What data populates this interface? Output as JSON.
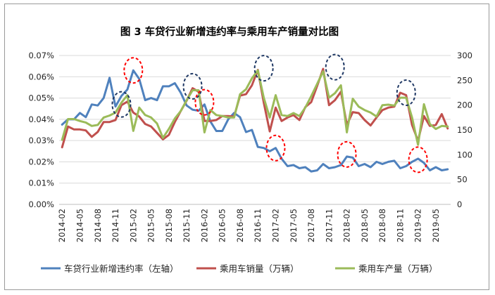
{
  "chart_data": {
    "type": "line",
    "title": "图 3  车贷行业新增违约率与乘用车产销量对比图",
    "left_axis": {
      "ticks": [
        "0.00%",
        "0.01%",
        "0.02%",
        "0.03%",
        "0.04%",
        "0.05%",
        "0.06%",
        "0.07%"
      ],
      "ylim": [
        0,
        0.07
      ]
    },
    "right_axis": {
      "ticks": [
        "0",
        "50",
        "100",
        "150",
        "200",
        "250",
        "300"
      ],
      "ylim": [
        0,
        300
      ]
    },
    "x_tick_labels": [
      "2014-02",
      "2014-05",
      "2014-08",
      "2014-11",
      "2015-02",
      "2015-05",
      "2015-08",
      "2015-11",
      "2016-02",
      "2016-05",
      "2016-08",
      "2016-11",
      "2017-02",
      "2017-05",
      "2017-08",
      "2017-11",
      "2018-02",
      "2018-05",
      "2018-08",
      "2018-11",
      "2019-02",
      "2019-05"
    ],
    "x_start": "2014-02",
    "x_end": "2019-07",
    "series": [
      {
        "name": "车贷行业新增违约率（左轴）",
        "axis": "left",
        "color": "#4f81bd",
        "values": [
          0.0375,
          0.04,
          0.04,
          0.043,
          0.041,
          0.047,
          0.0465,
          0.05,
          0.0595,
          0.046,
          0.051,
          0.054,
          0.063,
          0.059,
          0.049,
          0.05,
          0.049,
          0.0555,
          0.0555,
          0.057,
          0.0525,
          0.0465,
          0.0445,
          0.044,
          0.047,
          0.039,
          0.0345,
          0.0345,
          0.04,
          0.043,
          0.041,
          0.034,
          0.035,
          0.027,
          0.0265,
          0.025,
          0.0265,
          0.0215,
          0.018,
          0.0185,
          0.017,
          0.0175,
          0.0155,
          0.016,
          0.019,
          0.017,
          0.0175,
          0.0185,
          0.0225,
          0.022,
          0.018,
          0.019,
          0.0175,
          0.02,
          0.019,
          0.02,
          0.0205,
          0.017,
          0.018,
          0.02,
          0.0215,
          0.0195,
          0.016,
          0.0175,
          0.016,
          0.0165
        ]
      },
      {
        "name": "乘用车销量（万辆）",
        "axis": "right",
        "color": "#c0504d",
        "values": [
          115,
          157,
          151,
          151,
          149,
          136,
          146,
          166,
          166,
          170,
          200,
          207,
          185,
          177,
          162,
          157,
          144,
          131,
          140,
          166,
          188,
          209,
          234,
          227,
          168,
          168,
          170,
          178,
          178,
          177,
          219,
          222,
          240,
          271,
          205,
          147,
          195,
          168,
          175,
          180,
          170,
          196,
          206,
          239,
          273,
          200,
          210,
          227,
          160,
          186,
          184,
          170,
          159,
          175,
          190,
          195,
          197,
          225,
          220,
          160,
          128,
          178,
          158,
          160,
          182,
          153
        ]
      },
      {
        "name": "乘用车产量（万辆）",
        "axis": "right",
        "color": "#9bbb59",
        "values": [
          130,
          172,
          172,
          168,
          165,
          158,
          160,
          175,
          179,
          185,
          205,
          220,
          148,
          195,
          180,
          175,
          163,
          134,
          152,
          173,
          188,
          210,
          230,
          230,
          145,
          190,
          180,
          178,
          175,
          175,
          222,
          232,
          254,
          270,
          215,
          175,
          220,
          180,
          178,
          184,
          178,
          195,
          218,
          243,
          268,
          215,
          224,
          240,
          145,
          213,
          197,
          190,
          185,
          177,
          200,
          201,
          199,
          215,
          215,
          175,
          120,
          202,
          162,
          152,
          158,
          157
        ]
      }
    ],
    "highlight_circles": [
      {
        "date": "2014-12",
        "value": 0.047,
        "axis": "left",
        "color": "#1f3864"
      },
      {
        "date": "2015-02",
        "value": 0.063,
        "axis": "left",
        "color": "#ff0000"
      },
      {
        "date": "2015-12",
        "value": 0.0555,
        "axis": "left",
        "color": "#1f3864"
      },
      {
        "date": "2016-02",
        "value": 0.048,
        "axis": "left",
        "color": "#ff0000"
      },
      {
        "date": "2016-12",
        "value": 0.064,
        "axis": "left",
        "color": "#1f3864"
      },
      {
        "date": "2017-02",
        "value": 0.0265,
        "axis": "left",
        "color": "#ff0000"
      },
      {
        "date": "2017-12",
        "value": 0.0645,
        "axis": "left",
        "color": "#1f3864"
      },
      {
        "date": "2018-02",
        "value": 0.0235,
        "axis": "left",
        "color": "#ff0000"
      },
      {
        "date": "2018-12",
        "value": 0.0525,
        "axis": "left",
        "color": "#1f3864"
      },
      {
        "date": "2019-02",
        "value": 0.021,
        "axis": "left",
        "color": "#ff0000"
      }
    ],
    "legend": {
      "position": "bottom"
    }
  }
}
